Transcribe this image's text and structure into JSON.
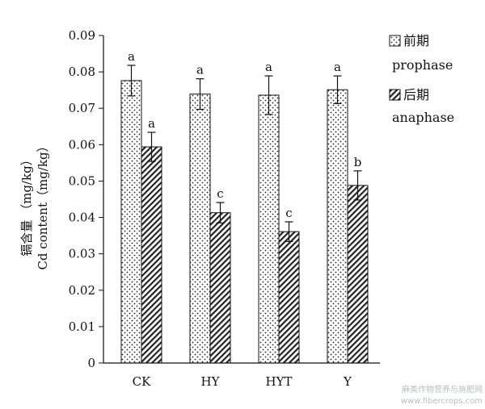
{
  "chart_data": {
    "type": "bar",
    "categories": [
      "CK",
      "HY",
      "HYT",
      "Y"
    ],
    "series": [
      {
        "name": "前期 prophase",
        "legend_cn": "前期",
        "legend_en": "prophase",
        "pattern": "dots",
        "values": [
          0.0776,
          0.0739,
          0.0736,
          0.0751
        ],
        "errors": [
          0.0042,
          0.0042,
          0.0053,
          0.0038
        ],
        "letters": [
          "a",
          "a",
          "a",
          "a"
        ]
      },
      {
        "name": "后期 anaphase",
        "legend_cn": "后期",
        "legend_en": "anaphase",
        "pattern": "hatch",
        "values": [
          0.0594,
          0.0413,
          0.0361,
          0.0488
        ],
        "errors": [
          0.004,
          0.0028,
          0.0027,
          0.004
        ],
        "letters": [
          "a",
          "c",
          "c",
          "b"
        ]
      }
    ],
    "ylabel_cn": "镉含量 （mg/kg）",
    "ylabel_en": "Cd content（mg/kg）",
    "xlabel": "",
    "ylim": [
      0,
      0.09
    ],
    "yticks": [
      "0",
      "0.01",
      "0.02",
      "0.03",
      "0.04",
      "0.05",
      "0.06",
      "0.07",
      "0.08",
      "0.09"
    ],
    "grid": false,
    "legend_position": "top-right"
  },
  "watermark": {
    "line1": "麻类作物营养与施肥网",
    "line2": "www.fibercrops.com"
  }
}
